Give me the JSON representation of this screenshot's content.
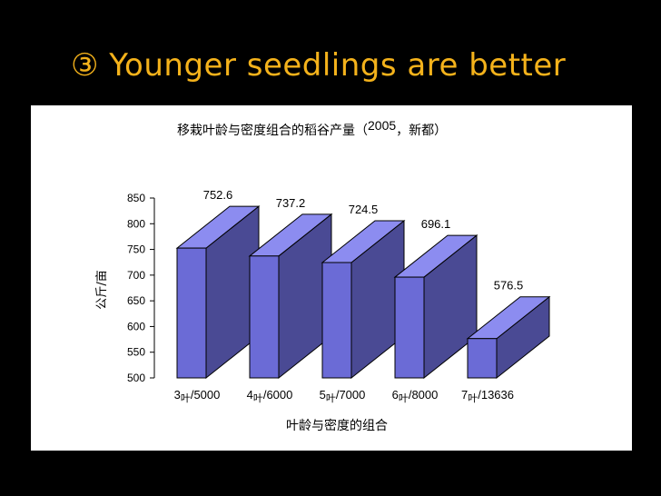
{
  "slide": {
    "title": "③ Younger seedlings are better"
  },
  "chart_data": {
    "type": "bar",
    "style": "3d",
    "title_prefix": "移栽叶龄与密度组合的稻谷产量（",
    "title_year": "2005",
    "title_suffix": "，新都）",
    "xlabel": "叶龄与密度的组合",
    "ylabel": "公斤/亩",
    "categories": [
      {
        "num": "3",
        "leaf": "叶",
        "density": "/5000"
      },
      {
        "num": "4",
        "leaf": "叶",
        "density": "/6000"
      },
      {
        "num": "5",
        "leaf": "叶",
        "density": "/7000"
      },
      {
        "num": "6",
        "leaf": "叶",
        "density": "/8000"
      },
      {
        "num": "7",
        "leaf": "叶",
        "density": "/13636"
      }
    ],
    "values": [
      752.6,
      737.2,
      724.5,
      696.1,
      576.5
    ],
    "value_labels": [
      "752.6",
      "737.2",
      "724.5",
      "696.1",
      "576.5"
    ],
    "yticks": [
      500,
      550,
      600,
      650,
      700,
      750,
      800,
      850
    ],
    "ylim": [
      500,
      850
    ],
    "colors": {
      "front": "#6b6bd6",
      "top": "#8c8cf0",
      "side": "#4a4a94",
      "edge": "#000000"
    },
    "grid": false,
    "legend": "none"
  }
}
